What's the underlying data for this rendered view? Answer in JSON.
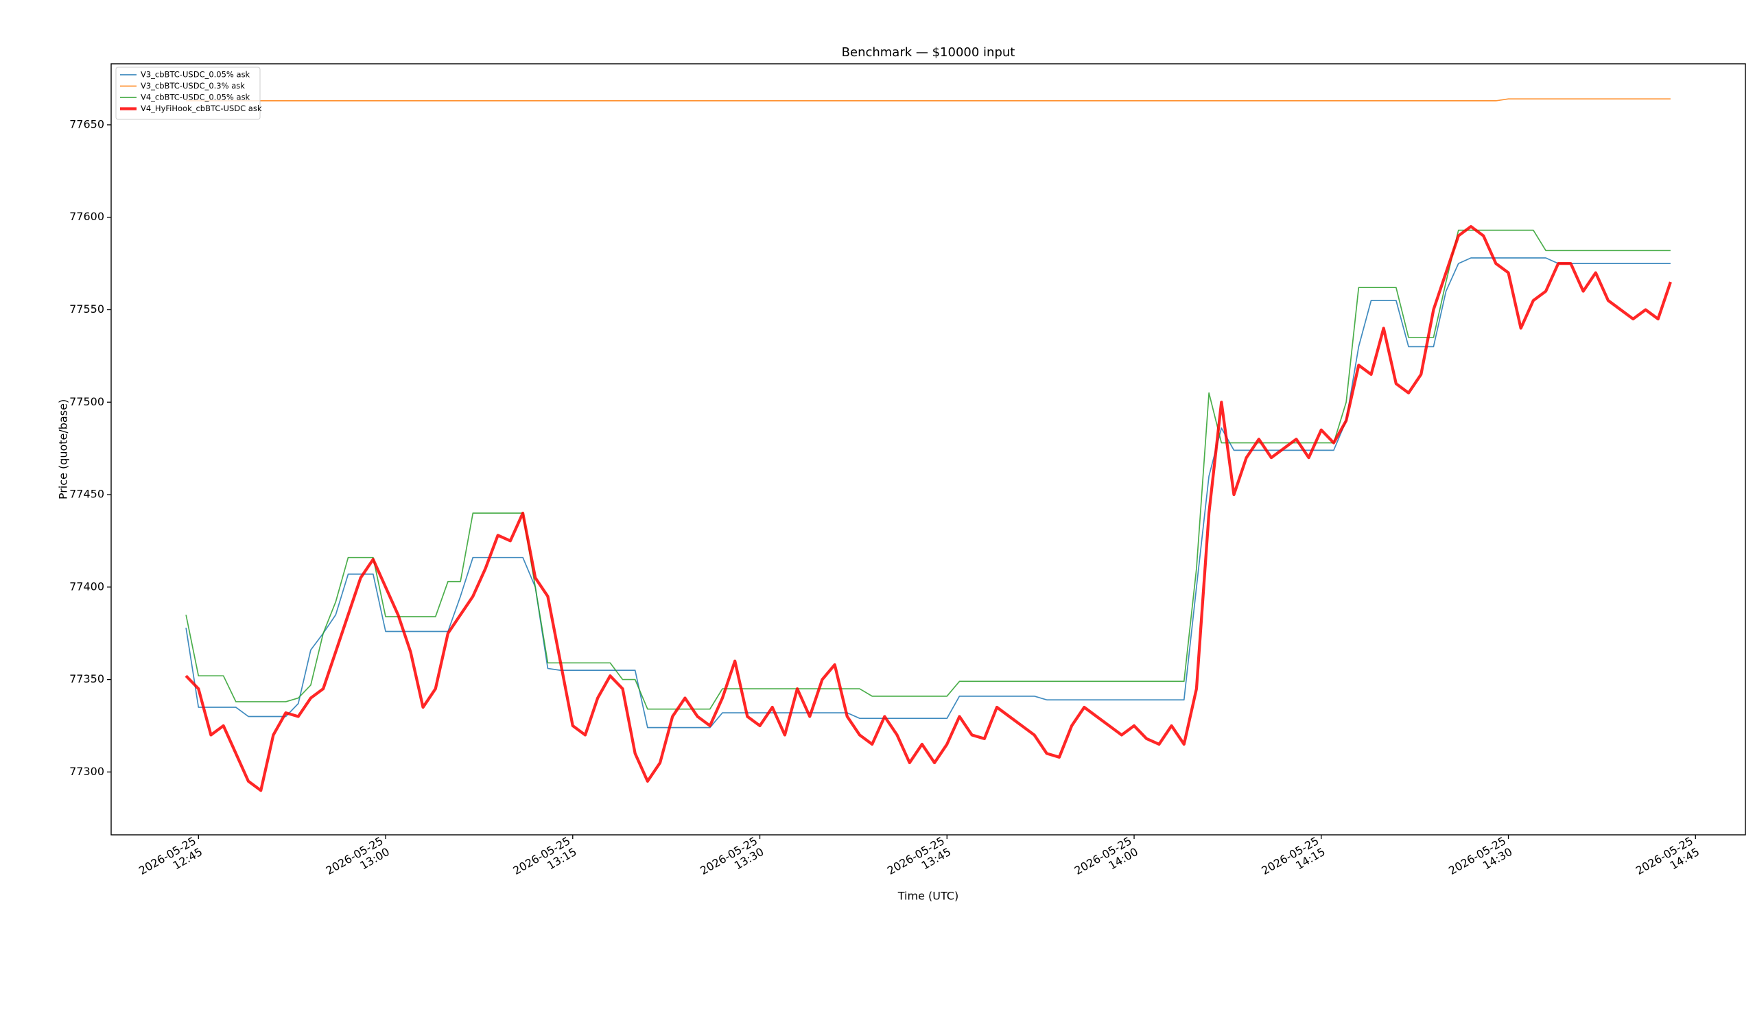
{
  "chart_data": {
    "type": "line",
    "title": "Benchmark — $10000 input",
    "xlabel": "Time (UTC)",
    "ylabel": "Price (quote/base)",
    "legend": "upper left",
    "x": [
      "2026-05-25 12:44",
      "2026-05-25 12:45",
      "2026-05-25 12:46",
      "2026-05-25 12:47",
      "2026-05-25 12:48",
      "2026-05-25 12:49",
      "2026-05-25 12:50",
      "2026-05-25 12:51",
      "2026-05-25 12:52",
      "2026-05-25 12:53",
      "2026-05-25 12:54",
      "2026-05-25 12:55",
      "2026-05-25 12:56",
      "2026-05-25 12:57",
      "2026-05-25 12:58",
      "2026-05-25 12:59",
      "2026-05-25 13:00",
      "2026-05-25 13:01",
      "2026-05-25 13:02",
      "2026-05-25 13:03",
      "2026-05-25 13:04",
      "2026-05-25 13:05",
      "2026-05-25 13:06",
      "2026-05-25 13:07",
      "2026-05-25 13:08",
      "2026-05-25 13:09",
      "2026-05-25 13:10",
      "2026-05-25 13:11",
      "2026-05-25 13:12",
      "2026-05-25 13:13",
      "2026-05-25 13:14",
      "2026-05-25 13:15",
      "2026-05-25 13:16",
      "2026-05-25 13:17",
      "2026-05-25 13:18",
      "2026-05-25 13:19",
      "2026-05-25 13:20",
      "2026-05-25 13:21",
      "2026-05-25 13:22",
      "2026-05-25 13:23",
      "2026-05-25 13:24",
      "2026-05-25 13:25",
      "2026-05-25 13:26",
      "2026-05-25 13:27",
      "2026-05-25 13:28",
      "2026-05-25 13:29",
      "2026-05-25 13:30",
      "2026-05-25 13:31",
      "2026-05-25 13:32",
      "2026-05-25 13:33",
      "2026-05-25 13:34",
      "2026-05-25 13:35",
      "2026-05-25 13:36",
      "2026-05-25 13:37",
      "2026-05-25 13:38",
      "2026-05-25 13:39",
      "2026-05-25 13:40",
      "2026-05-25 13:41",
      "2026-05-25 13:42",
      "2026-05-25 13:43",
      "2026-05-25 13:44",
      "2026-05-25 13:45",
      "2026-05-25 13:46",
      "2026-05-25 13:47",
      "2026-05-25 13:48",
      "2026-05-25 13:49",
      "2026-05-25 13:50",
      "2026-05-25 13:51",
      "2026-05-25 13:52",
      "2026-05-25 13:53",
      "2026-05-25 13:54",
      "2026-05-25 13:55",
      "2026-05-25 13:56",
      "2026-05-25 13:57",
      "2026-05-25 13:58",
      "2026-05-25 13:59",
      "2026-05-25 14:00",
      "2026-05-25 14:01",
      "2026-05-25 14:02",
      "2026-05-25 14:03",
      "2026-05-25 14:04",
      "2026-05-25 14:05",
      "2026-05-25 14:06",
      "2026-05-25 14:07",
      "2026-05-25 14:08",
      "2026-05-25 14:09",
      "2026-05-25 14:10",
      "2026-05-25 14:11",
      "2026-05-25 14:12",
      "2026-05-25 14:13",
      "2026-05-25 14:14",
      "2026-05-25 14:15",
      "2026-05-25 14:16",
      "2026-05-25 14:17",
      "2026-05-25 14:18",
      "2026-05-25 14:19",
      "2026-05-25 14:20",
      "2026-05-25 14:21",
      "2026-05-25 14:22",
      "2026-05-25 14:23",
      "2026-05-25 14:24",
      "2026-05-25 14:25",
      "2026-05-25 14:26",
      "2026-05-25 14:27",
      "2026-05-25 14:28",
      "2026-05-25 14:29",
      "2026-05-25 14:30",
      "2026-05-25 14:31",
      "2026-05-25 14:32",
      "2026-05-25 14:33",
      "2026-05-25 14:34",
      "2026-05-25 14:35",
      "2026-05-25 14:36",
      "2026-05-25 14:37",
      "2026-05-25 14:38",
      "2026-05-25 14:39",
      "2026-05-25 14:40",
      "2026-05-25 14:41",
      "2026-05-25 14:42",
      "2026-05-25 14:43"
    ],
    "series": [
      {
        "name": "V3_cbBTC-USDC_0.05% ask",
        "color": "#1f77b4",
        "linewidth": 1,
        "values": [
          77378,
          77335,
          77335,
          77335,
          77335,
          77330,
          77330,
          77330,
          77330,
          77337,
          77366,
          77375,
          77385,
          77407,
          77407,
          77407,
          77376,
          77376,
          77376,
          77376,
          77376,
          77376,
          77395,
          77416,
          77416,
          77416,
          77416,
          77416,
          77400,
          77356,
          77355,
          77355,
          77355,
          77355,
          77355,
          77355,
          77355,
          77324,
          77324,
          77324,
          77324,
          77324,
          77324,
          77332,
          77332,
          77332,
          77332,
          77332,
          77332,
          77332,
          77332,
          77332,
          77332,
          77332,
          77329,
          77329,
          77329,
          77329,
          77329,
          77329,
          77329,
          77329,
          77341,
          77341,
          77341,
          77341,
          77341,
          77341,
          77341,
          77339,
          77339,
          77339,
          77339,
          77339,
          77339,
          77339,
          77339,
          77339,
          77339,
          77339,
          77339,
          77400,
          77460,
          77486,
          77474,
          77474,
          77474,
          77474,
          77474,
          77474,
          77474,
          77474,
          77474,
          77490,
          77530,
          77555,
          77555,
          77555,
          77530,
          77530,
          77530,
          77560,
          77575,
          77578,
          77578,
          77578,
          77578,
          77578,
          77578,
          77578,
          77575,
          77575,
          77575,
          77575,
          77575,
          77575,
          77575,
          77575,
          77575,
          77575
        ]
      },
      {
        "name": "V3_cbBTC-USDC_0.3% ask",
        "color": "#ff7f0e",
        "linewidth": 1,
        "values": [
          77663,
          77663,
          77663,
          77663,
          77663,
          77663,
          77663,
          77663,
          77663,
          77663,
          77663,
          77663,
          77663,
          77663,
          77663,
          77663,
          77663,
          77663,
          77663,
          77663,
          77663,
          77663,
          77663,
          77663,
          77663,
          77663,
          77663,
          77663,
          77663,
          77663,
          77663,
          77663,
          77663,
          77663,
          77663,
          77663,
          77663,
          77663,
          77663,
          77663,
          77663,
          77663,
          77663,
          77663,
          77663,
          77663,
          77663,
          77663,
          77663,
          77663,
          77663,
          77663,
          77663,
          77663,
          77663,
          77663,
          77663,
          77663,
          77663,
          77663,
          77663,
          77663,
          77663,
          77663,
          77663,
          77663,
          77663,
          77663,
          77663,
          77663,
          77663,
          77663,
          77663,
          77663,
          77663,
          77663,
          77663,
          77663,
          77663,
          77663,
          77663,
          77663,
          77663,
          77663,
          77663,
          77663,
          77663,
          77663,
          77663,
          77663,
          77663,
          77663,
          77663,
          77663,
          77663,
          77663,
          77663,
          77663,
          77663,
          77663,
          77663,
          77663,
          77663,
          77663,
          77663,
          77663,
          77664,
          77664,
          77664,
          77664,
          77664,
          77664,
          77664,
          77664,
          77664,
          77664,
          77664,
          77664,
          77664,
          77664
        ]
      },
      {
        "name": "V4_cbBTC-USDC_0.05% ask",
        "color": "#2ca02c",
        "linewidth": 1,
        "values": [
          77385,
          77352,
          77352,
          77352,
          77338,
          77338,
          77338,
          77338,
          77338,
          77340,
          77347,
          77375,
          77392,
          77416,
          77416,
          77416,
          77384,
          77384,
          77384,
          77384,
          77384,
          77403,
          77403,
          77440,
          77440,
          77440,
          77440,
          77440,
          77400,
          77359,
          77359,
          77359,
          77359,
          77359,
          77359,
          77350,
          77350,
          77334,
          77334,
          77334,
          77334,
          77334,
          77334,
          77345,
          77345,
          77345,
          77345,
          77345,
          77345,
          77345,
          77345,
          77345,
          77345,
          77345,
          77345,
          77341,
          77341,
          77341,
          77341,
          77341,
          77341,
          77341,
          77349,
          77349,
          77349,
          77349,
          77349,
          77349,
          77349,
          77349,
          77349,
          77349,
          77349,
          77349,
          77349,
          77349,
          77349,
          77349,
          77349,
          77349,
          77349,
          77410,
          77505,
          77478,
          77478,
          77478,
          77478,
          77478,
          77478,
          77478,
          77478,
          77478,
          77478,
          77500,
          77562,
          77562,
          77562,
          77562,
          77535,
          77535,
          77535,
          77565,
          77593,
          77593,
          77593,
          77593,
          77593,
          77593,
          77593,
          77582,
          77582,
          77582,
          77582,
          77582,
          77582,
          77582,
          77582,
          77582,
          77582,
          77582
        ]
      },
      {
        "name": "V4_HyFiHook_cbBTC-USDC ask",
        "color": "#ff0000",
        "linewidth": 2.5,
        "values": [
          77352,
          77345,
          77320,
          77325,
          77310,
          77295,
          77290,
          77320,
          77332,
          77330,
          77340,
          77345,
          77365,
          77385,
          77405,
          77415,
          77400,
          77385,
          77365,
          77335,
          77345,
          77375,
          77385,
          77395,
          77410,
          77428,
          77425,
          77440,
          77405,
          77395,
          77360,
          77325,
          77320,
          77340,
          77352,
          77345,
          77310,
          77295,
          77305,
          77330,
          77340,
          77330,
          77325,
          77340,
          77360,
          77330,
          77325,
          77335,
          77320,
          77345,
          77330,
          77350,
          77358,
          77330,
          77320,
          77315,
          77330,
          77320,
          77305,
          77315,
          77305,
          77315,
          77330,
          77320,
          77318,
          77335,
          77330,
          77325,
          77320,
          77310,
          77308,
          77325,
          77335,
          77330,
          77325,
          77320,
          77325,
          77318,
          77315,
          77325,
          77315,
          77345,
          77440,
          77500,
          77450,
          77470,
          77480,
          77470,
          77475,
          77480,
          77470,
          77485,
          77478,
          77490,
          77520,
          77515,
          77540,
          77510,
          77505,
          77515,
          77550,
          77570,
          77590,
          77595,
          77590,
          77575,
          77570,
          77540,
          77555,
          77560,
          77575,
          77575,
          77560,
          77570,
          77555,
          77550,
          77545,
          77550,
          77545,
          77565
        ]
      }
    ],
    "xlim": [
      "2026-05-25 12:38",
      "2026-05-25 14:49"
    ],
    "xticks": [
      "2026-05-25 12:45",
      "2026-05-25 13:00",
      "2026-05-25 13:15",
      "2026-05-25 13:30",
      "2026-05-25 13:45",
      "2026-05-25 14:00",
      "2026-05-25 14:15",
      "2026-05-25 14:30",
      "2026-05-25 14:45"
    ],
    "ylim": [
      77266,
      77683
    ],
    "yticks": [
      77300,
      77350,
      77400,
      77450,
      77500,
      77550,
      77600,
      77650
    ],
    "grid": false
  }
}
